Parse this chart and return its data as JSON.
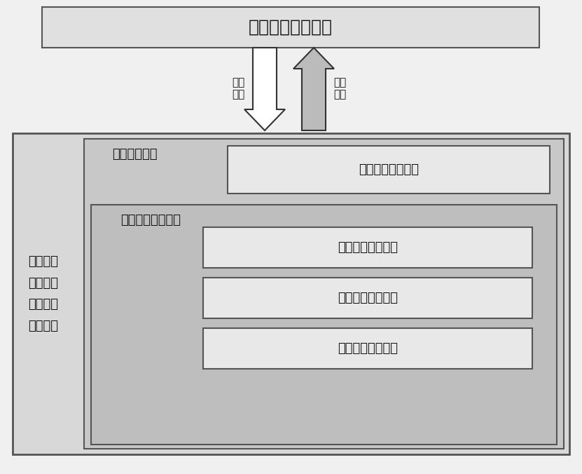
{
  "title": "数控机床数控系统",
  "left_label": "数控机床\n三维实时\n仿真及防\n碰撞系统",
  "human_module_label": "人机交互模块",
  "comm_module_label": "数控系统通信模块",
  "render_module_label": "三维渲染环境模块",
  "inner_modules": [
    "机床模型数据模块",
    "实时碰撞检测模块",
    "工件实时切削模块"
  ],
  "arrow_down_label": "采集\n信息",
  "arrow_up_label": "返回\n信息",
  "title_font_size": 18,
  "label_font_size": 13,
  "inner_font_size": 13
}
